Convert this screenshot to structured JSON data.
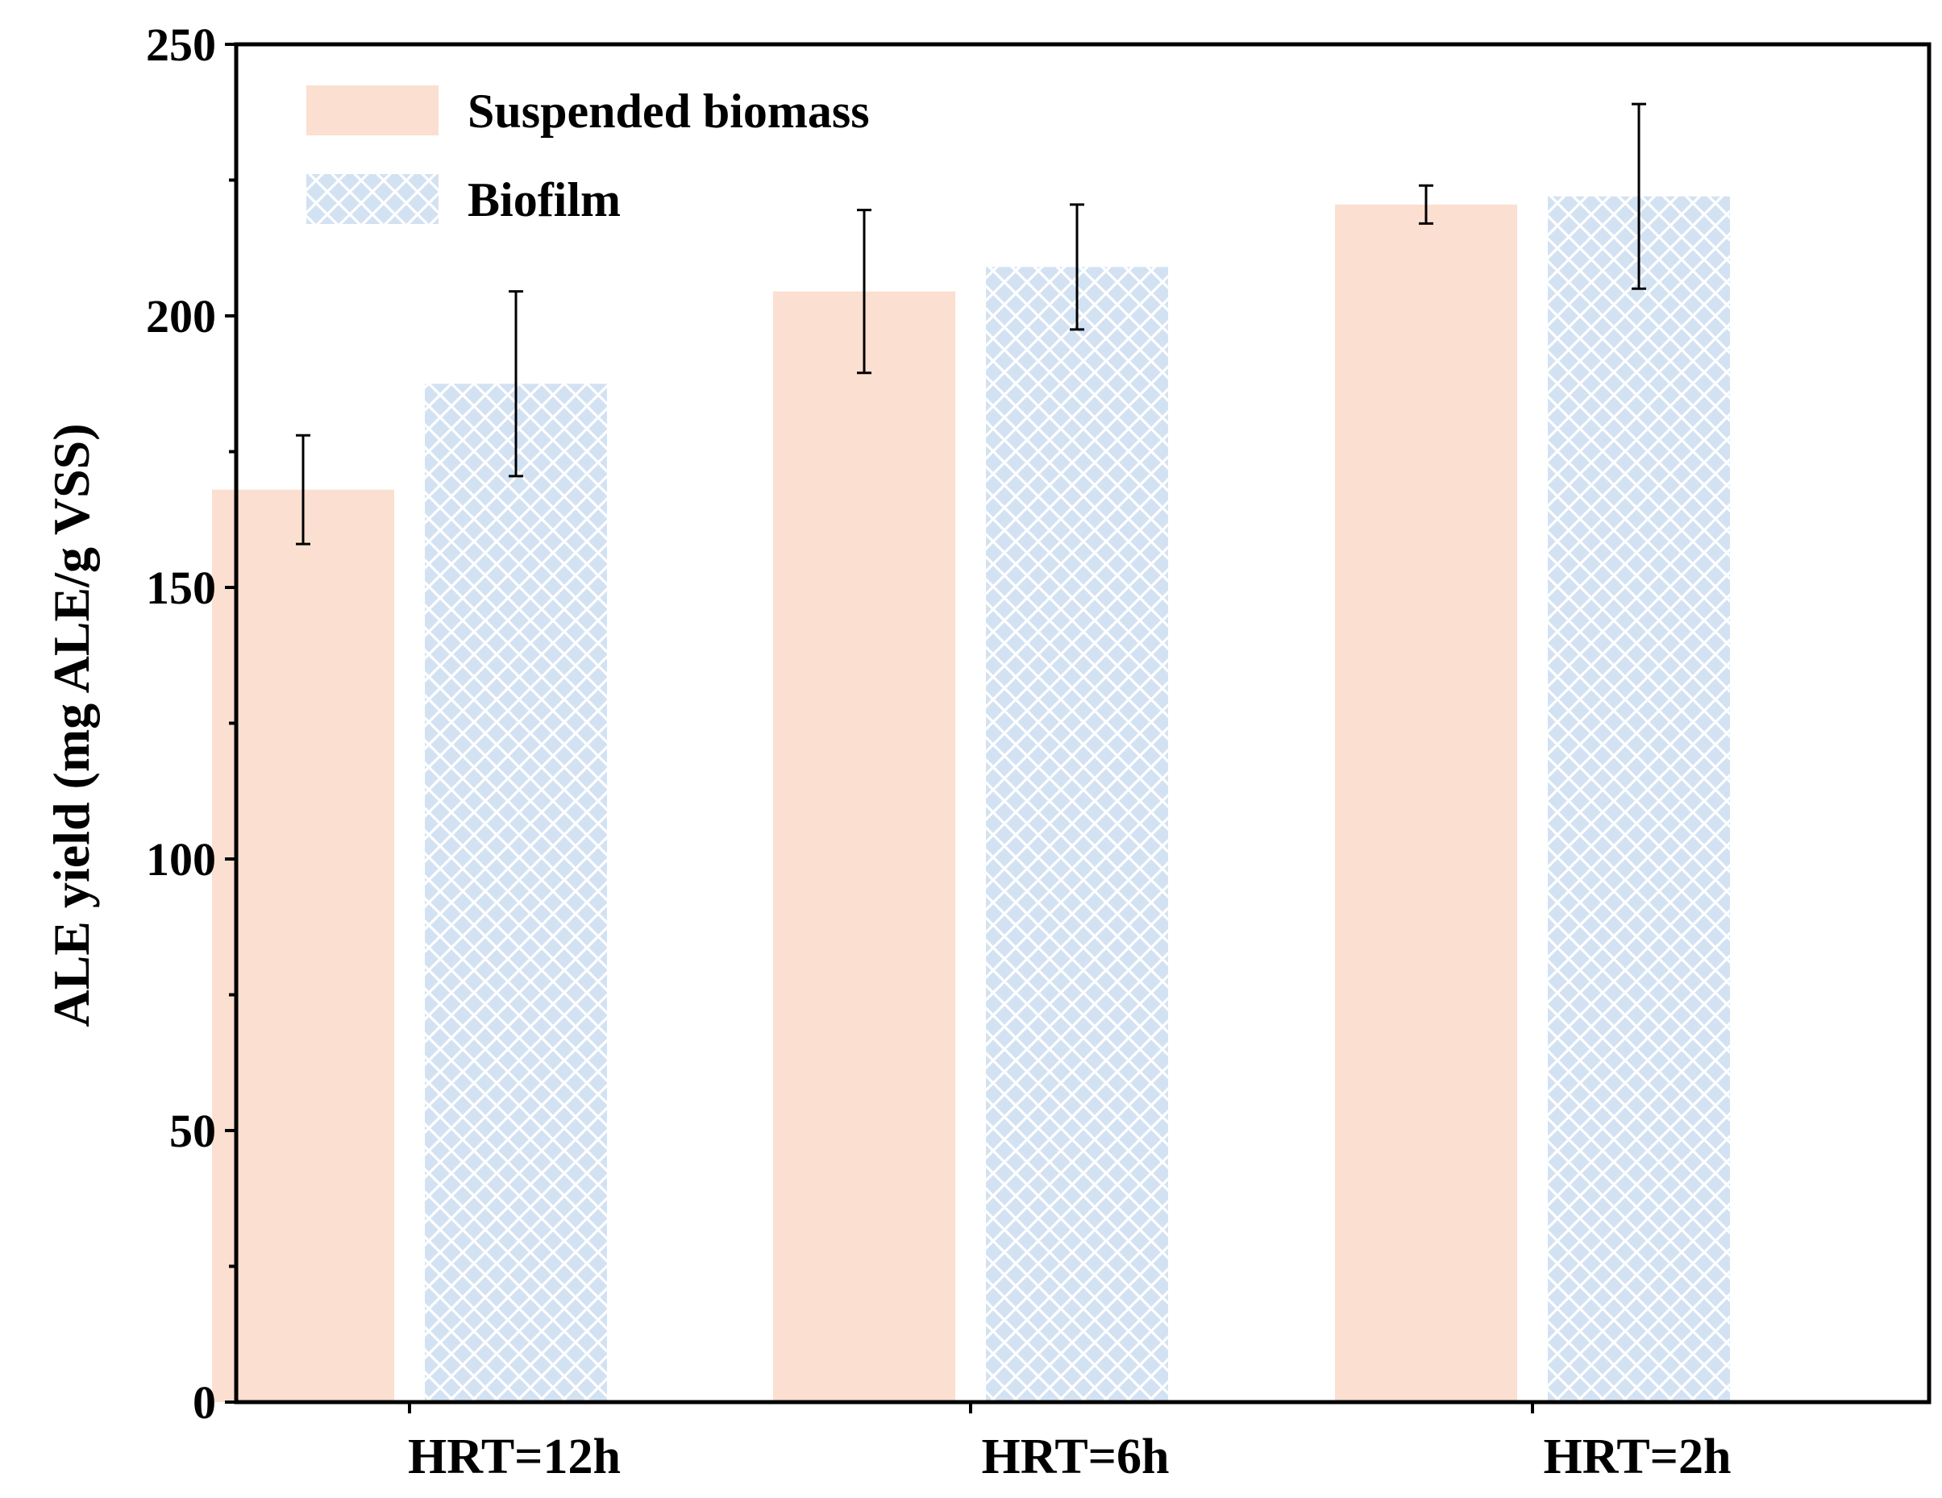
{
  "chart_data": {
    "type": "bar",
    "title": "",
    "xlabel": "",
    "ylabel": "ALE yield (mg ALE/g VSS)",
    "ylim": [
      0,
      250
    ],
    "y_major_ticks": [
      0,
      50,
      100,
      150,
      200,
      250
    ],
    "y_minor_tick_step": 25,
    "grid": false,
    "legend_position": "top-left",
    "categories": [
      "HRT=12h",
      "HRT=6h",
      "HRT=2h"
    ],
    "series": [
      {
        "name": "Suspended biomass",
        "color": "#fbdfd0",
        "pattern": "solid",
        "values": [
          168,
          204.5,
          220.5
        ],
        "errors": [
          10,
          15,
          3.5
        ]
      },
      {
        "name": "Biofilm",
        "color": "#d3e2f3",
        "pattern": "crosshatch",
        "values": [
          187.5,
          209,
          222
        ],
        "errors": [
          17,
          11.5,
          17
        ]
      }
    ]
  }
}
